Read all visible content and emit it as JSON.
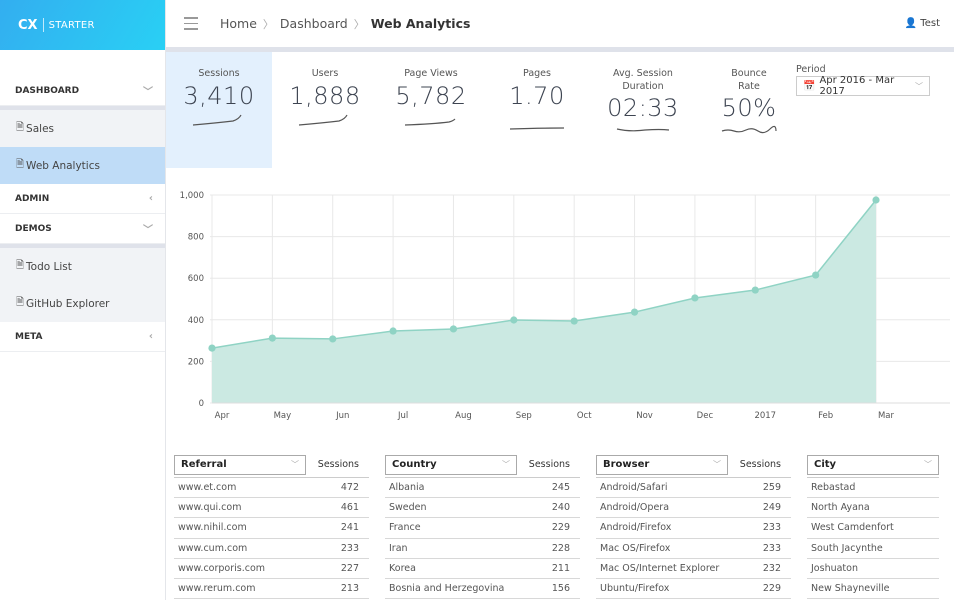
{
  "sidebar": {
    "logo_cx": "CX",
    "logo_starter": "STARTER",
    "sections": [
      {
        "label": "DASHBOARD"
      },
      {
        "label": "ADMIN"
      },
      {
        "label": "DEMOS"
      },
      {
        "label": "META"
      }
    ],
    "dashboard_items": [
      {
        "label": "Sales"
      },
      {
        "label": "Web Analytics"
      }
    ],
    "demo_items": [
      {
        "label": "Todo List"
      },
      {
        "label": "GitHub Explorer"
      }
    ]
  },
  "header": {
    "breadcrumb": [
      "Home",
      "Dashboard",
      "Web Analytics"
    ],
    "user": "Test"
  },
  "stats": [
    {
      "label": "Sessions",
      "value": "3,410"
    },
    {
      "label": "Users",
      "value": "1,888"
    },
    {
      "label": "Page Views",
      "value": "5,782"
    },
    {
      "label": "Pages",
      "value": "1.70"
    },
    {
      "label": "Avg. Session Duration",
      "value": "02:33"
    },
    {
      "label": "Bounce Rate",
      "value": "50%"
    }
  ],
  "period": {
    "label": "Period",
    "value": "Apr 2016 - Mar 2017"
  },
  "chart_data": {
    "type": "area",
    "categories": [
      "Apr",
      "May",
      "Jun",
      "Jul",
      "Aug",
      "Sep",
      "Oct",
      "Nov",
      "Dec",
      "2017",
      "Feb",
      "Mar"
    ],
    "values": [
      264,
      312,
      308,
      346,
      356,
      399,
      394,
      437,
      505,
      543,
      615,
      976
    ],
    "ylim": [
      0,
      1000
    ],
    "yticks": [
      "0",
      "200",
      "400",
      "600",
      "800",
      "1,000"
    ],
    "grid": true,
    "color": "#8fd3c4"
  },
  "tables": [
    {
      "dimension": "Referral",
      "metric": "Sessions",
      "rows": [
        [
          "www.et.com",
          "472"
        ],
        [
          "www.qui.com",
          "461"
        ],
        [
          "www.nihil.com",
          "241"
        ],
        [
          "www.cum.com",
          "233"
        ],
        [
          "www.corporis.com",
          "227"
        ],
        [
          "www.rerum.com",
          "213"
        ]
      ]
    },
    {
      "dimension": "Country",
      "metric": "Sessions",
      "rows": [
        [
          "Albania",
          "245"
        ],
        [
          "Sweden",
          "240"
        ],
        [
          "France",
          "229"
        ],
        [
          "Iran",
          "228"
        ],
        [
          "Korea",
          "211"
        ],
        [
          "Bosnia and Herzegovina",
          "156"
        ]
      ]
    },
    {
      "dimension": "Browser",
      "metric": "Sessions",
      "rows": [
        [
          "Android/Safari",
          "259"
        ],
        [
          "Android/Opera",
          "249"
        ],
        [
          "Android/Firefox",
          "233"
        ],
        [
          "Mac OS/Firefox",
          "233"
        ],
        [
          "Mac OS/Internet Explorer",
          "232"
        ],
        [
          "Ubuntu/Firefox",
          "229"
        ]
      ]
    },
    {
      "dimension": "City",
      "metric": "",
      "rows": [
        [
          "Rebastad",
          ""
        ],
        [
          "North Ayana",
          ""
        ],
        [
          "West Camdenfort",
          ""
        ],
        [
          "South Jacynthe",
          ""
        ],
        [
          "Joshuaton",
          ""
        ],
        [
          "New Shayneville",
          ""
        ]
      ]
    }
  ]
}
